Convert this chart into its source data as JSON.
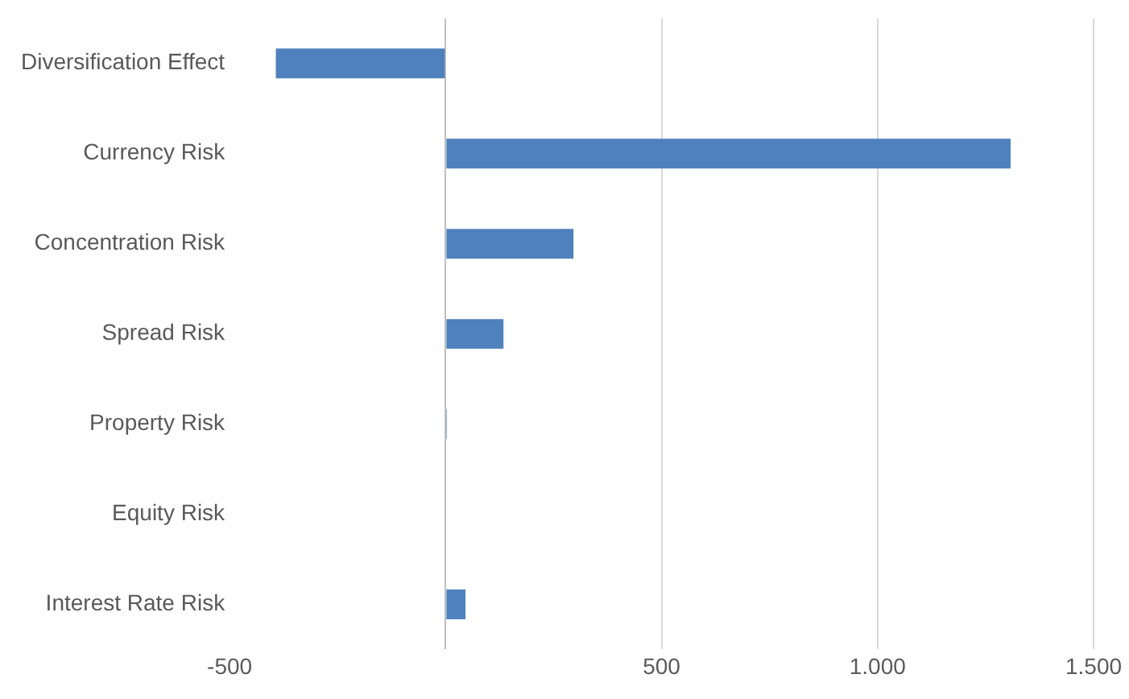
{
  "chart_data": {
    "type": "bar",
    "orientation": "horizontal",
    "categories": [
      "Diversification Effect",
      "Currency Risk",
      "Concentration Risk",
      "Spread Risk",
      "Property Risk",
      "Equity Risk",
      "Interest Rate Risk"
    ],
    "values": [
      -393,
      1308,
      296,
      134,
      3,
      0,
      46
    ],
    "color": "#4f81bd",
    "xlim": [
      -500,
      1500
    ],
    "xticks": [
      -500,
      {
        "value": 0,
        "label": null
      },
      500,
      {
        "value": 1000,
        "label": "1.000"
      },
      {
        "value": 1500,
        "label": "1.500"
      }
    ],
    "grid": "x",
    "legend": false
  }
}
